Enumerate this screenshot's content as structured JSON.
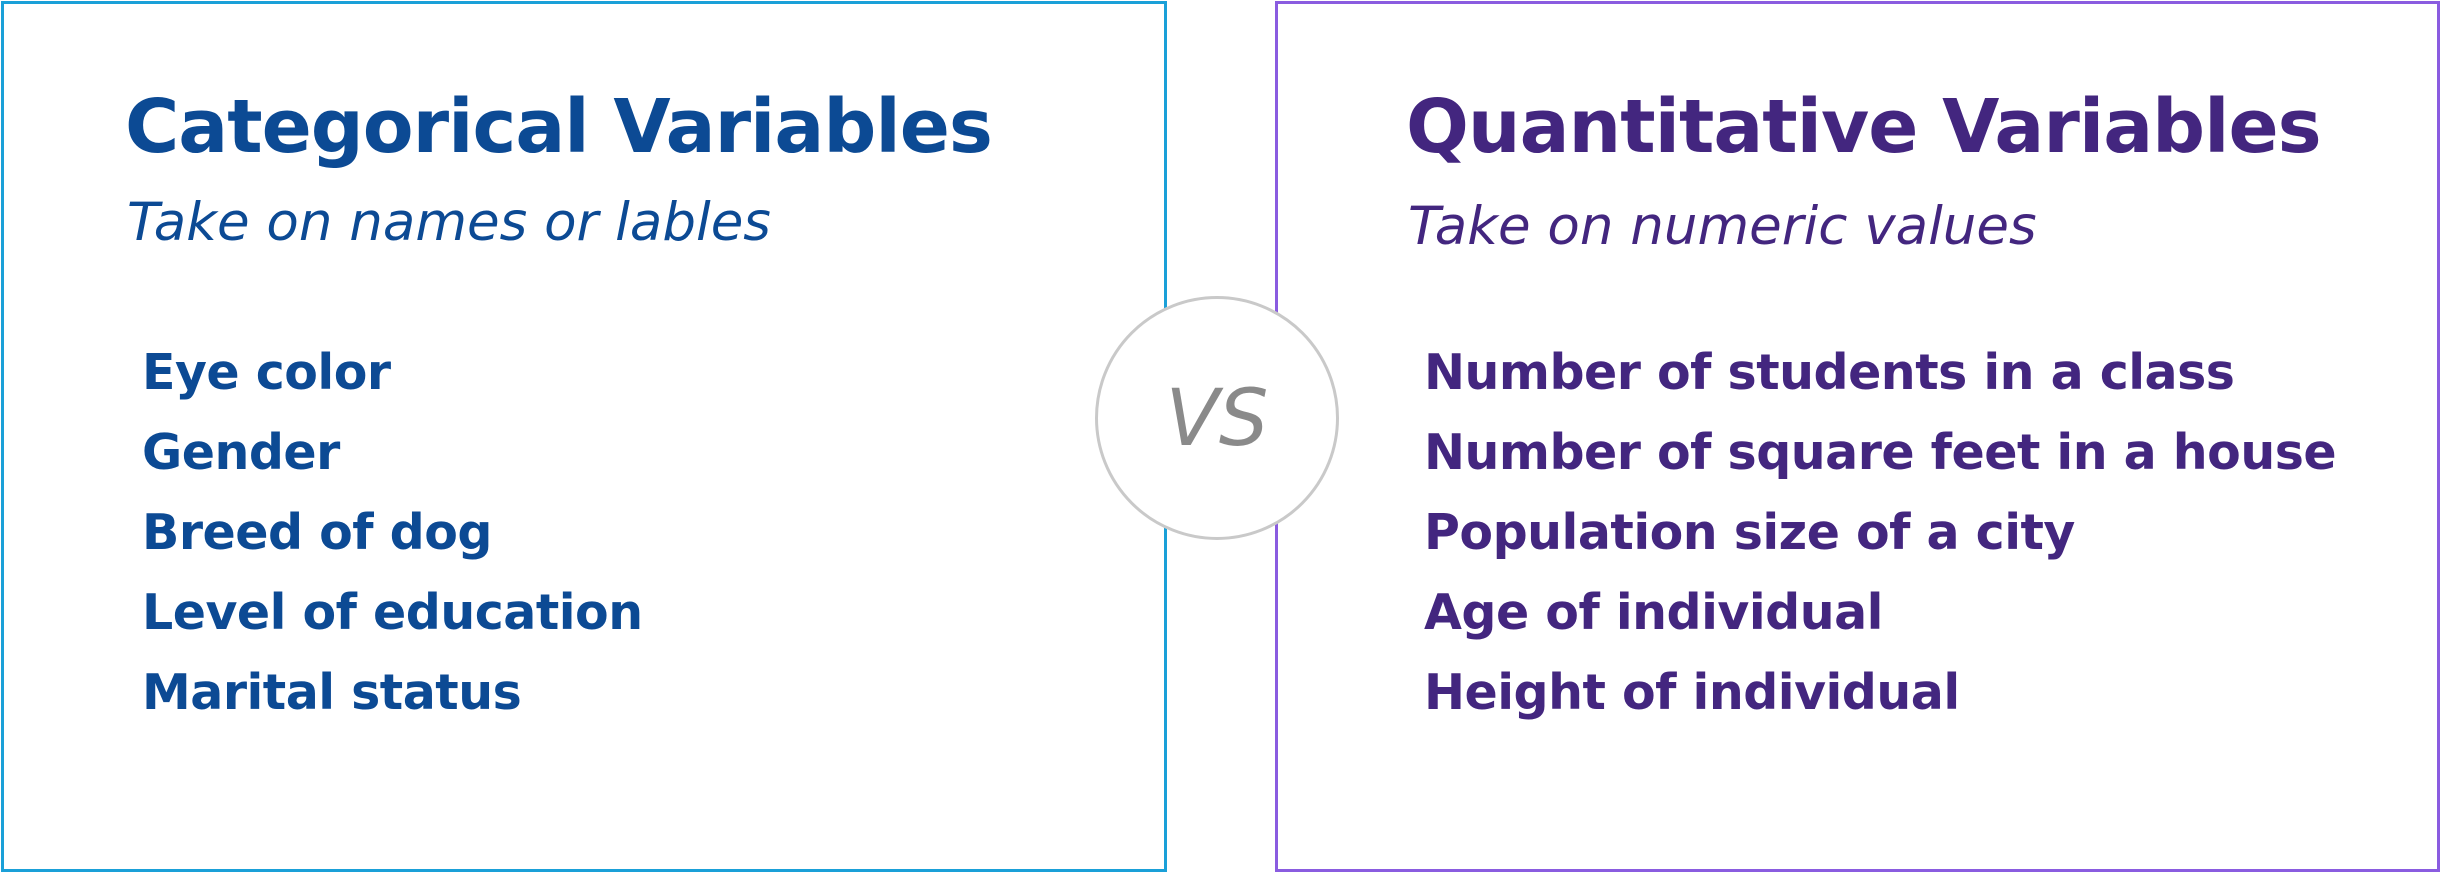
{
  "left_panel": {
    "title": "Categorical Variables",
    "subtitle": "Take on names or lables",
    "items": [
      "Eye color",
      "Gender",
      "Breed of dog",
      "Level of education",
      "Marital status"
    ],
    "border_color": "#1aa0d8",
    "text_color": "#0c4a94"
  },
  "right_panel": {
    "title": "Quantitative Variables",
    "subtitle": "Take on numeric values",
    "items": [
      "Number of students in a class",
      "Number of square feet in a house",
      "Population size of a city",
      "Age of individual",
      "Height of individual"
    ],
    "border_color": "#8a5ce0",
    "text_color": "#43267f"
  },
  "vs_badge": {
    "label": "VS",
    "border_color": "#c9c9c9",
    "text_color": "#8a8a8a"
  }
}
